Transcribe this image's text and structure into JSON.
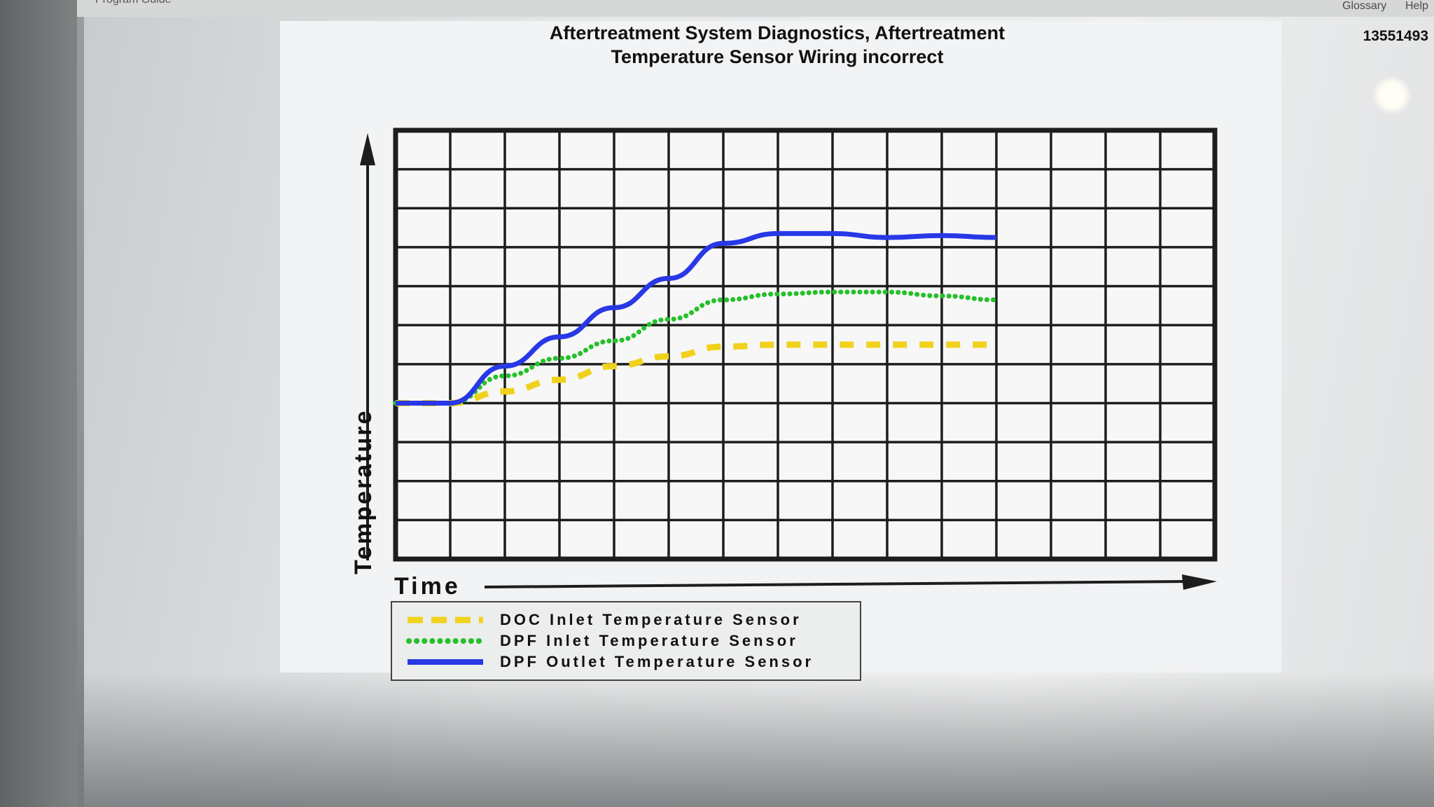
{
  "topbar": {
    "left_label": "Program Guide",
    "glossary": "Glossary",
    "help": "Help"
  },
  "document": {
    "title_line1": "Aftertreatment System Diagnostics, Aftertreatment",
    "title_line2": "Temperature Sensor Wiring incorrect",
    "number": "13551493"
  },
  "chart_data": {
    "type": "line",
    "title": "Aftertreatment System Diagnostics, Aftertreatment Temperature Sensor Wiring incorrect",
    "xlabel": "Time",
    "ylabel": "Temperature",
    "grid": true,
    "legend_position": "bottom-left",
    "x_divisions": 15,
    "y_divisions": 11,
    "series": [
      {
        "name": "DOC Inlet Temperature Sensor",
        "color": "#f0d21c",
        "style": "dashed",
        "points": [
          [
            0,
            4
          ],
          [
            1,
            4
          ],
          [
            2,
            4.3
          ],
          [
            3,
            4.6
          ],
          [
            4,
            4.95
          ],
          [
            5,
            5.2
          ],
          [
            6,
            5.45
          ],
          [
            7,
            5.5
          ],
          [
            8,
            5.5
          ],
          [
            9,
            5.5
          ],
          [
            10,
            5.5
          ],
          [
            11,
            5.5
          ]
        ]
      },
      {
        "name": "DPF Inlet Temperature Sensor",
        "color": "#25c02a",
        "style": "dotted",
        "points": [
          [
            0,
            4
          ],
          [
            1,
            4
          ],
          [
            2,
            4.7
          ],
          [
            3,
            5.15
          ],
          [
            4,
            5.6
          ],
          [
            5,
            6.15
          ],
          [
            6,
            6.65
          ],
          [
            7,
            6.8
          ],
          [
            8,
            6.85
          ],
          [
            9,
            6.85
          ],
          [
            10,
            6.75
          ],
          [
            11,
            6.65
          ]
        ]
      },
      {
        "name": "DPF Outlet Temperature Sensor",
        "color": "#2838e6",
        "style": "solid",
        "points": [
          [
            0,
            4
          ],
          [
            1,
            4
          ],
          [
            2,
            4.95
          ],
          [
            3,
            5.7
          ],
          [
            4,
            6.45
          ],
          [
            5,
            7.2
          ],
          [
            6,
            8.1
          ],
          [
            7,
            8.35
          ],
          [
            8,
            8.35
          ],
          [
            9,
            8.25
          ],
          [
            10,
            8.3
          ],
          [
            11,
            8.25
          ]
        ]
      }
    ]
  }
}
